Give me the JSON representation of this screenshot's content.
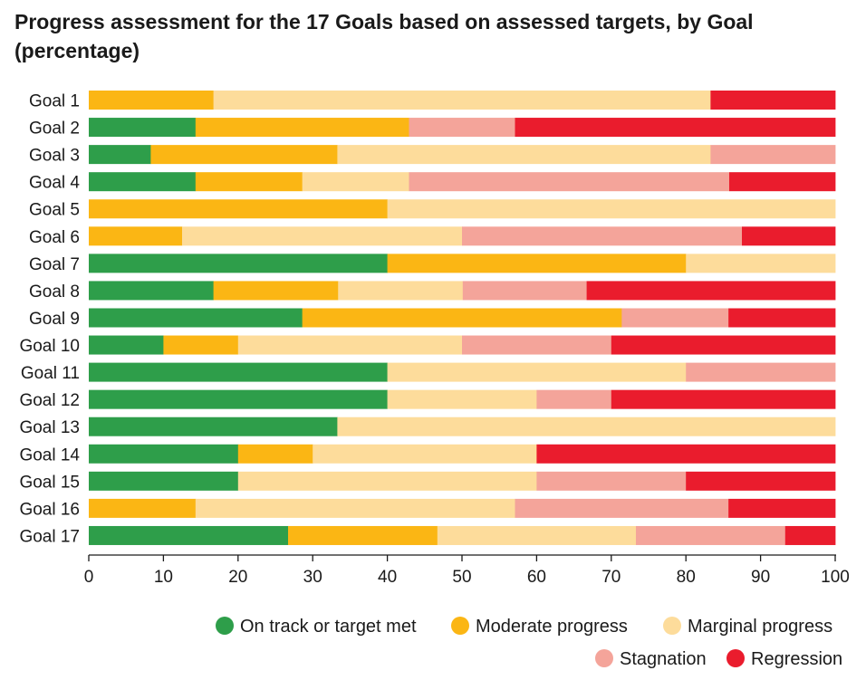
{
  "chart_data": {
    "type": "bar",
    "orientation": "horizontal",
    "stacked": true,
    "title": "Progress assessment for the 17 Goals based on assessed targets, by Goal (percentage)",
    "categories": [
      "Goal 1",
      "Goal 2",
      "Goal 3",
      "Goal 4",
      "Goal 5",
      "Goal 6",
      "Goal 7",
      "Goal 8",
      "Goal 9",
      "Goal 10",
      "Goal 11",
      "Goal 12",
      "Goal 13",
      "Goal 14",
      "Goal 15",
      "Goal 16",
      "Goal 17"
    ],
    "series": [
      {
        "name": "On track or target met",
        "color": "#2e9e4a",
        "values": [
          0,
          14.3,
          8.3,
          14.3,
          0,
          0,
          40,
          16.7,
          28.6,
          10,
          40,
          40,
          33.3,
          20,
          20,
          0,
          26.7
        ]
      },
      {
        "name": "Moderate progress",
        "color": "#fbb614",
        "values": [
          16.7,
          28.6,
          25,
          14.3,
          40,
          12.5,
          40,
          16.7,
          42.8,
          10,
          0,
          0,
          0,
          10,
          0,
          14.3,
          20
        ]
      },
      {
        "name": "Marginal progress",
        "color": "#fddc9b",
        "values": [
          66.6,
          0,
          50,
          14.3,
          60,
          37.5,
          20,
          16.7,
          0,
          30,
          40,
          20,
          66.7,
          30,
          40,
          42.8,
          26.6
        ]
      },
      {
        "name": "Stagnation",
        "color": "#f4a49a",
        "values": [
          0,
          14.2,
          16.7,
          42.9,
          0,
          37.5,
          0,
          16.6,
          14.3,
          20,
          20,
          10,
          0,
          0,
          20,
          28.6,
          20
        ]
      },
      {
        "name": "Regression",
        "color": "#ea1c2d",
        "values": [
          16.7,
          42.9,
          0,
          14.2,
          0,
          12.5,
          0,
          33.3,
          14.3,
          30,
          0,
          30,
          0,
          40,
          20,
          14.3,
          6.7
        ]
      }
    ],
    "xlim": [
      0,
      100
    ],
    "xticks": [
      "0",
      "10",
      "20",
      "30",
      "40",
      "50",
      "60",
      "70",
      "80",
      "90",
      "100"
    ],
    "grid": false,
    "legend_position": "bottom-right"
  }
}
